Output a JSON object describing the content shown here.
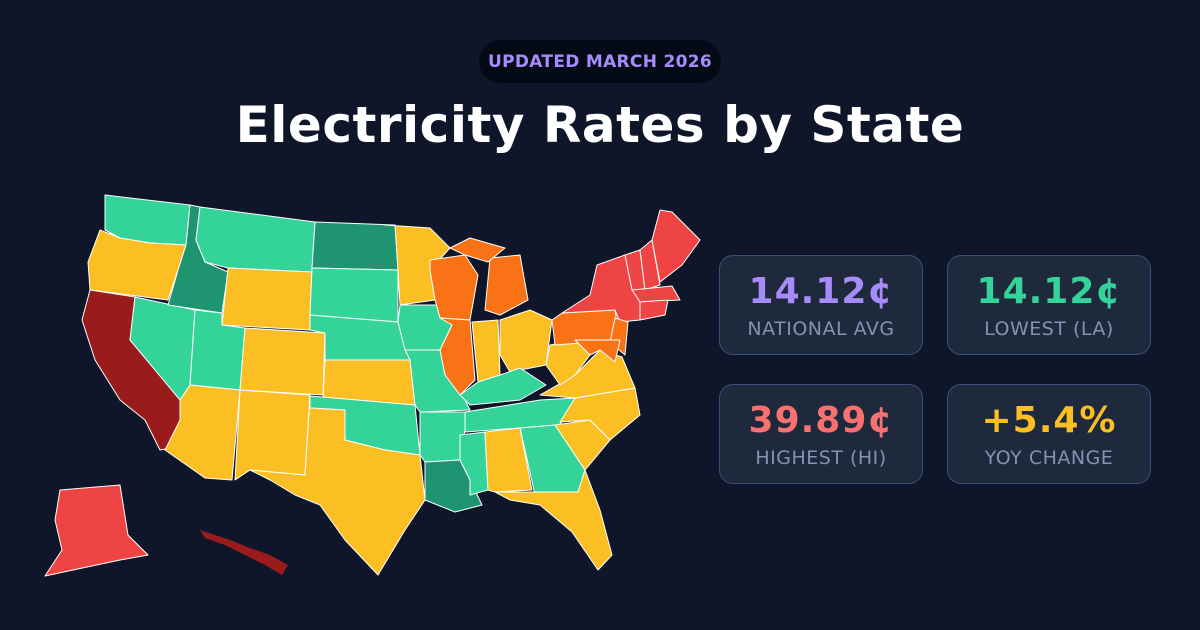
{
  "badge": "UPDATED MARCH 2026",
  "title": "Electricity Rates by State",
  "stats": [
    {
      "value": "14.12¢",
      "label": "NATIONAL AVG",
      "color": "#a78bfa"
    },
    {
      "value": "14.12¢",
      "label": "LOWEST (LA)",
      "color": "#34d399"
    },
    {
      "value": "39.89¢",
      "label": "HIGHEST (HI)",
      "color": "#f87171"
    },
    {
      "value": "+5.4%",
      "label": "YOY CHANGE",
      "color": "#fbbf24"
    }
  ],
  "map": {
    "tier_colors": {
      "t1": "#1f9470",
      "t2": "#34d399",
      "t3": "#fbbf24",
      "t4": "#f97316",
      "t5": "#ef4444",
      "t6": "#991b1b"
    },
    "states": {
      "WA": "t2",
      "OR": "t3",
      "CA": "t6",
      "NV": "t2",
      "ID": "t1",
      "MT": "t2",
      "WY": "t3",
      "UT": "t2",
      "CO": "t3",
      "AZ": "t3",
      "NM": "t3",
      "ND": "t1",
      "SD": "t2",
      "NE": "t2",
      "KS": "t3",
      "OK": "t2",
      "TX": "t3",
      "MN": "t3",
      "IA": "t2",
      "MO": "t2",
      "AR": "t2",
      "LA": "t1",
      "WI": "t4",
      "IL": "t4",
      "MI": "t4",
      "MI_UP": "t4",
      "IN": "t3",
      "OH": "t3",
      "KY": "t2",
      "TN": "t2",
      "MS": "t2",
      "AL": "t3",
      "GA": "t2",
      "FL": "t3",
      "SC": "t3",
      "NC": "t3",
      "VA": "t3",
      "WV": "t3",
      "PA": "t4",
      "NY": "t5",
      "NJ": "t4",
      "MD": "t4",
      "VT": "t5",
      "NH": "t5",
      "ME": "t5",
      "MA": "t5",
      "CT": "t5",
      "AK": "t5",
      "HI": "t6"
    }
  }
}
